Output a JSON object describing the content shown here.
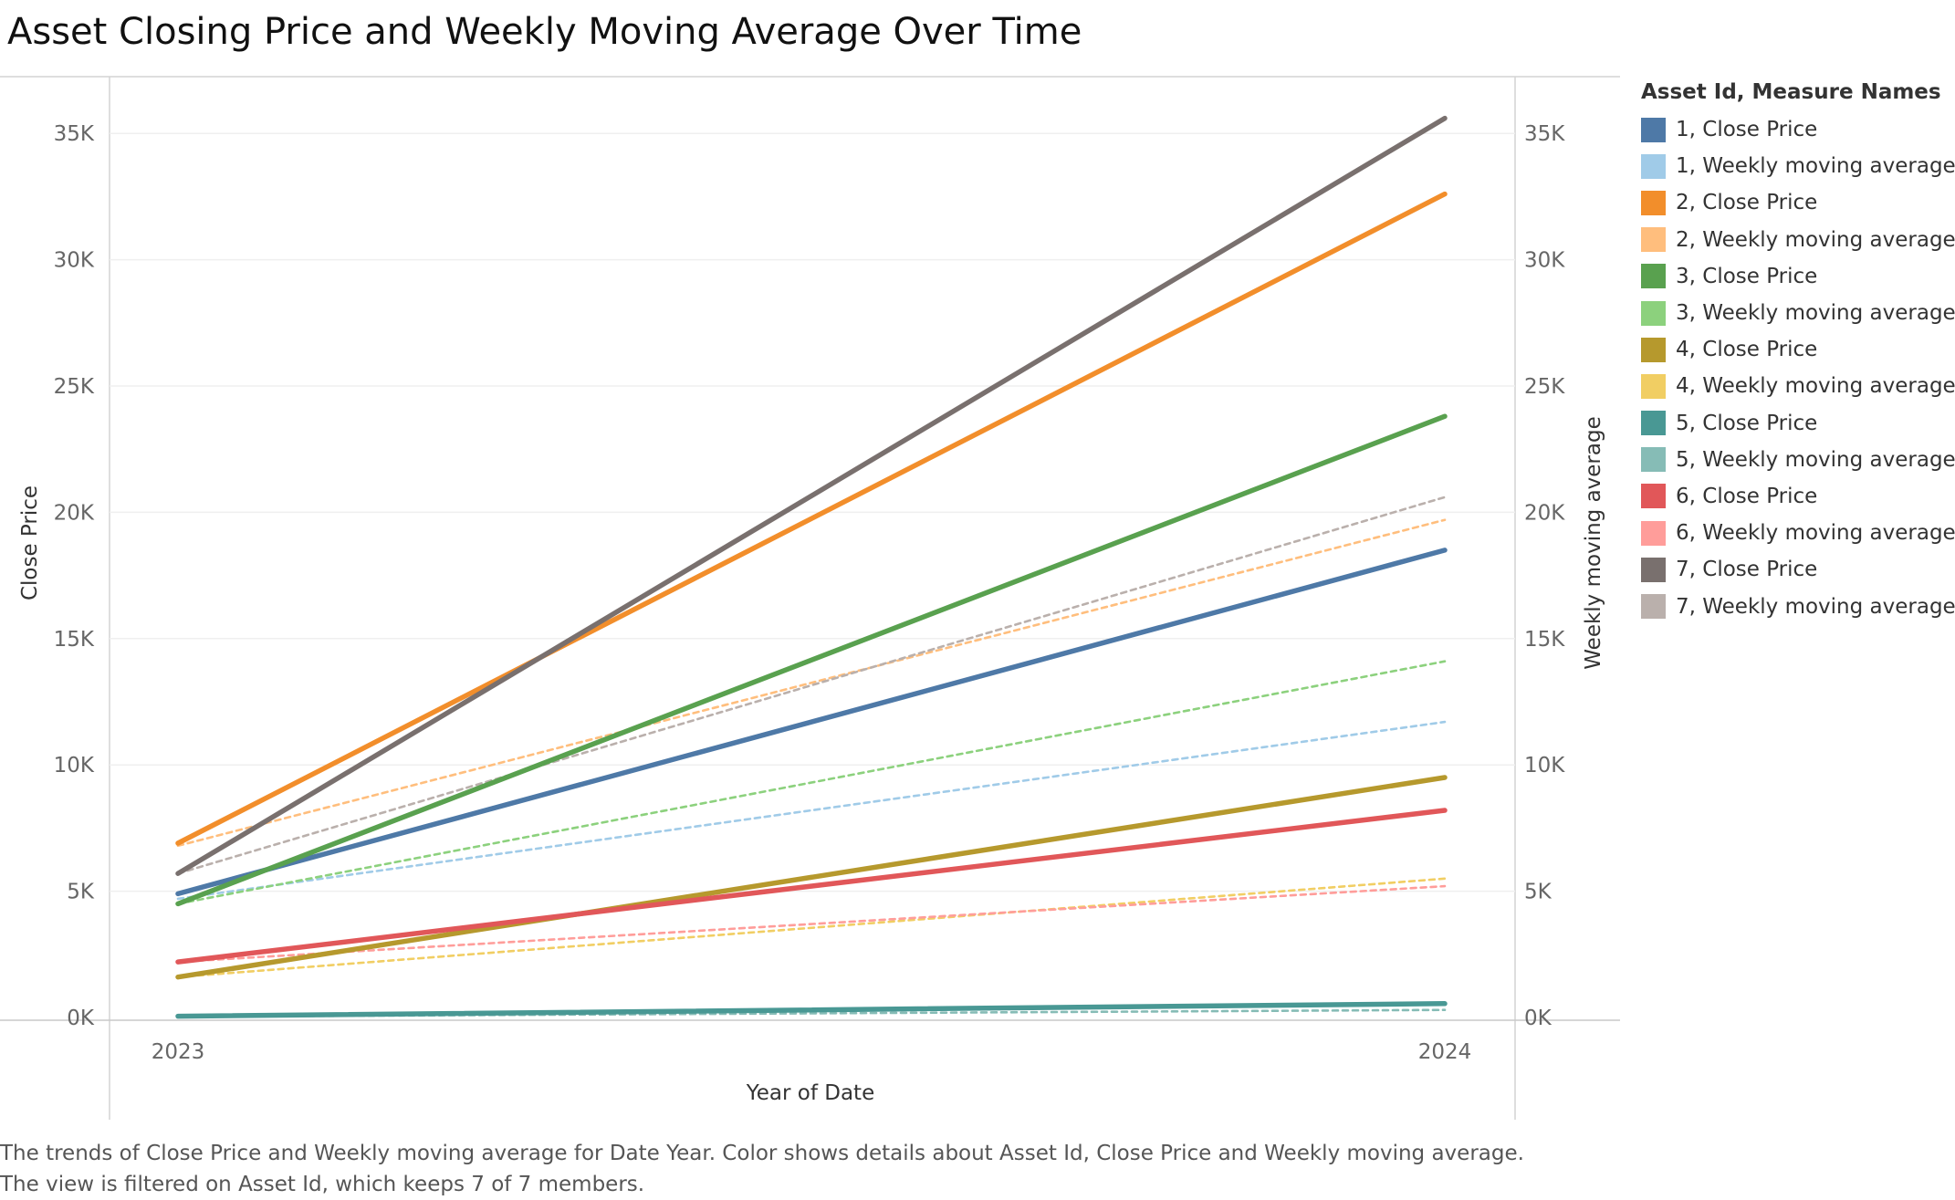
{
  "title": "Asset Closing Price and Weekly Moving Average Over Time",
  "legend_title": "Asset Id, Measure Names",
  "caption": {
    "line1": "The trends of Close Price and Weekly moving average for Date Year.  Color shows details about Asset Id, Close Price and Weekly moving average.",
    "line2": "The view is filtered on Asset Id, which keeps 7 of 7 members."
  },
  "chart_data": {
    "type": "line",
    "title": "Asset Closing Price and Weekly Moving Average Over Time",
    "xlabel": "Year of Date",
    "ylabel": "Close Price",
    "y2label": "Weekly moving average",
    "categories": [
      "2023",
      "2024"
    ],
    "ylim": [
      0,
      37000
    ],
    "y2lim": [
      0,
      37000
    ],
    "y_ticks": [
      0,
      5000,
      10000,
      15000,
      20000,
      25000,
      30000,
      35000
    ],
    "y_tick_labels": [
      "0K",
      "5K",
      "10K",
      "15K",
      "20K",
      "25K",
      "30K",
      "35K"
    ],
    "grid": true,
    "legend_position": "right",
    "series": [
      {
        "name": "1, Close Price",
        "values": [
          4900,
          18500
        ],
        "color": "#4e79a7",
        "style": "solid",
        "axis": "left"
      },
      {
        "name": "1, Weekly moving average",
        "values": [
          4700,
          11700
        ],
        "color": "#a0cbe8",
        "style": "dashed",
        "axis": "right"
      },
      {
        "name": "2, Close Price",
        "values": [
          6900,
          32600
        ],
        "color": "#f28e2b",
        "style": "solid",
        "axis": "left"
      },
      {
        "name": "2, Weekly moving average",
        "values": [
          6800,
          19700
        ],
        "color": "#ffbe7d",
        "style": "dashed",
        "axis": "right"
      },
      {
        "name": "3, Close Price",
        "values": [
          4500,
          23800
        ],
        "color": "#59a14f",
        "style": "solid",
        "axis": "left"
      },
      {
        "name": "3, Weekly moving average",
        "values": [
          4500,
          14100
        ],
        "color": "#8cd17d",
        "style": "dashed",
        "axis": "right"
      },
      {
        "name": "4, Close Price",
        "values": [
          1600,
          9500
        ],
        "color": "#b6992d",
        "style": "solid",
        "axis": "left"
      },
      {
        "name": "4, Weekly moving average",
        "values": [
          1600,
          5500
        ],
        "color": "#f1ce63",
        "style": "dashed",
        "axis": "right"
      },
      {
        "name": "5, Close Price",
        "values": [
          50,
          550
        ],
        "color": "#499894",
        "style": "solid",
        "axis": "left"
      },
      {
        "name": "5, Weekly moving average",
        "values": [
          30,
          300
        ],
        "color": "#86bcb6",
        "style": "dashed",
        "axis": "right"
      },
      {
        "name": "6, Close Price",
        "values": [
          2200,
          8200
        ],
        "color": "#e15759",
        "style": "solid",
        "axis": "left"
      },
      {
        "name": "6, Weekly moving average",
        "values": [
          2200,
          5200
        ],
        "color": "#ff9d9a",
        "style": "dashed",
        "axis": "right"
      },
      {
        "name": "7, Close Price",
        "values": [
          5700,
          35600
        ],
        "color": "#79706e",
        "style": "solid",
        "axis": "left"
      },
      {
        "name": "7, Weekly moving average",
        "values": [
          5700,
          20600
        ],
        "color": "#bab0ac",
        "style": "dashed",
        "axis": "right"
      }
    ]
  }
}
